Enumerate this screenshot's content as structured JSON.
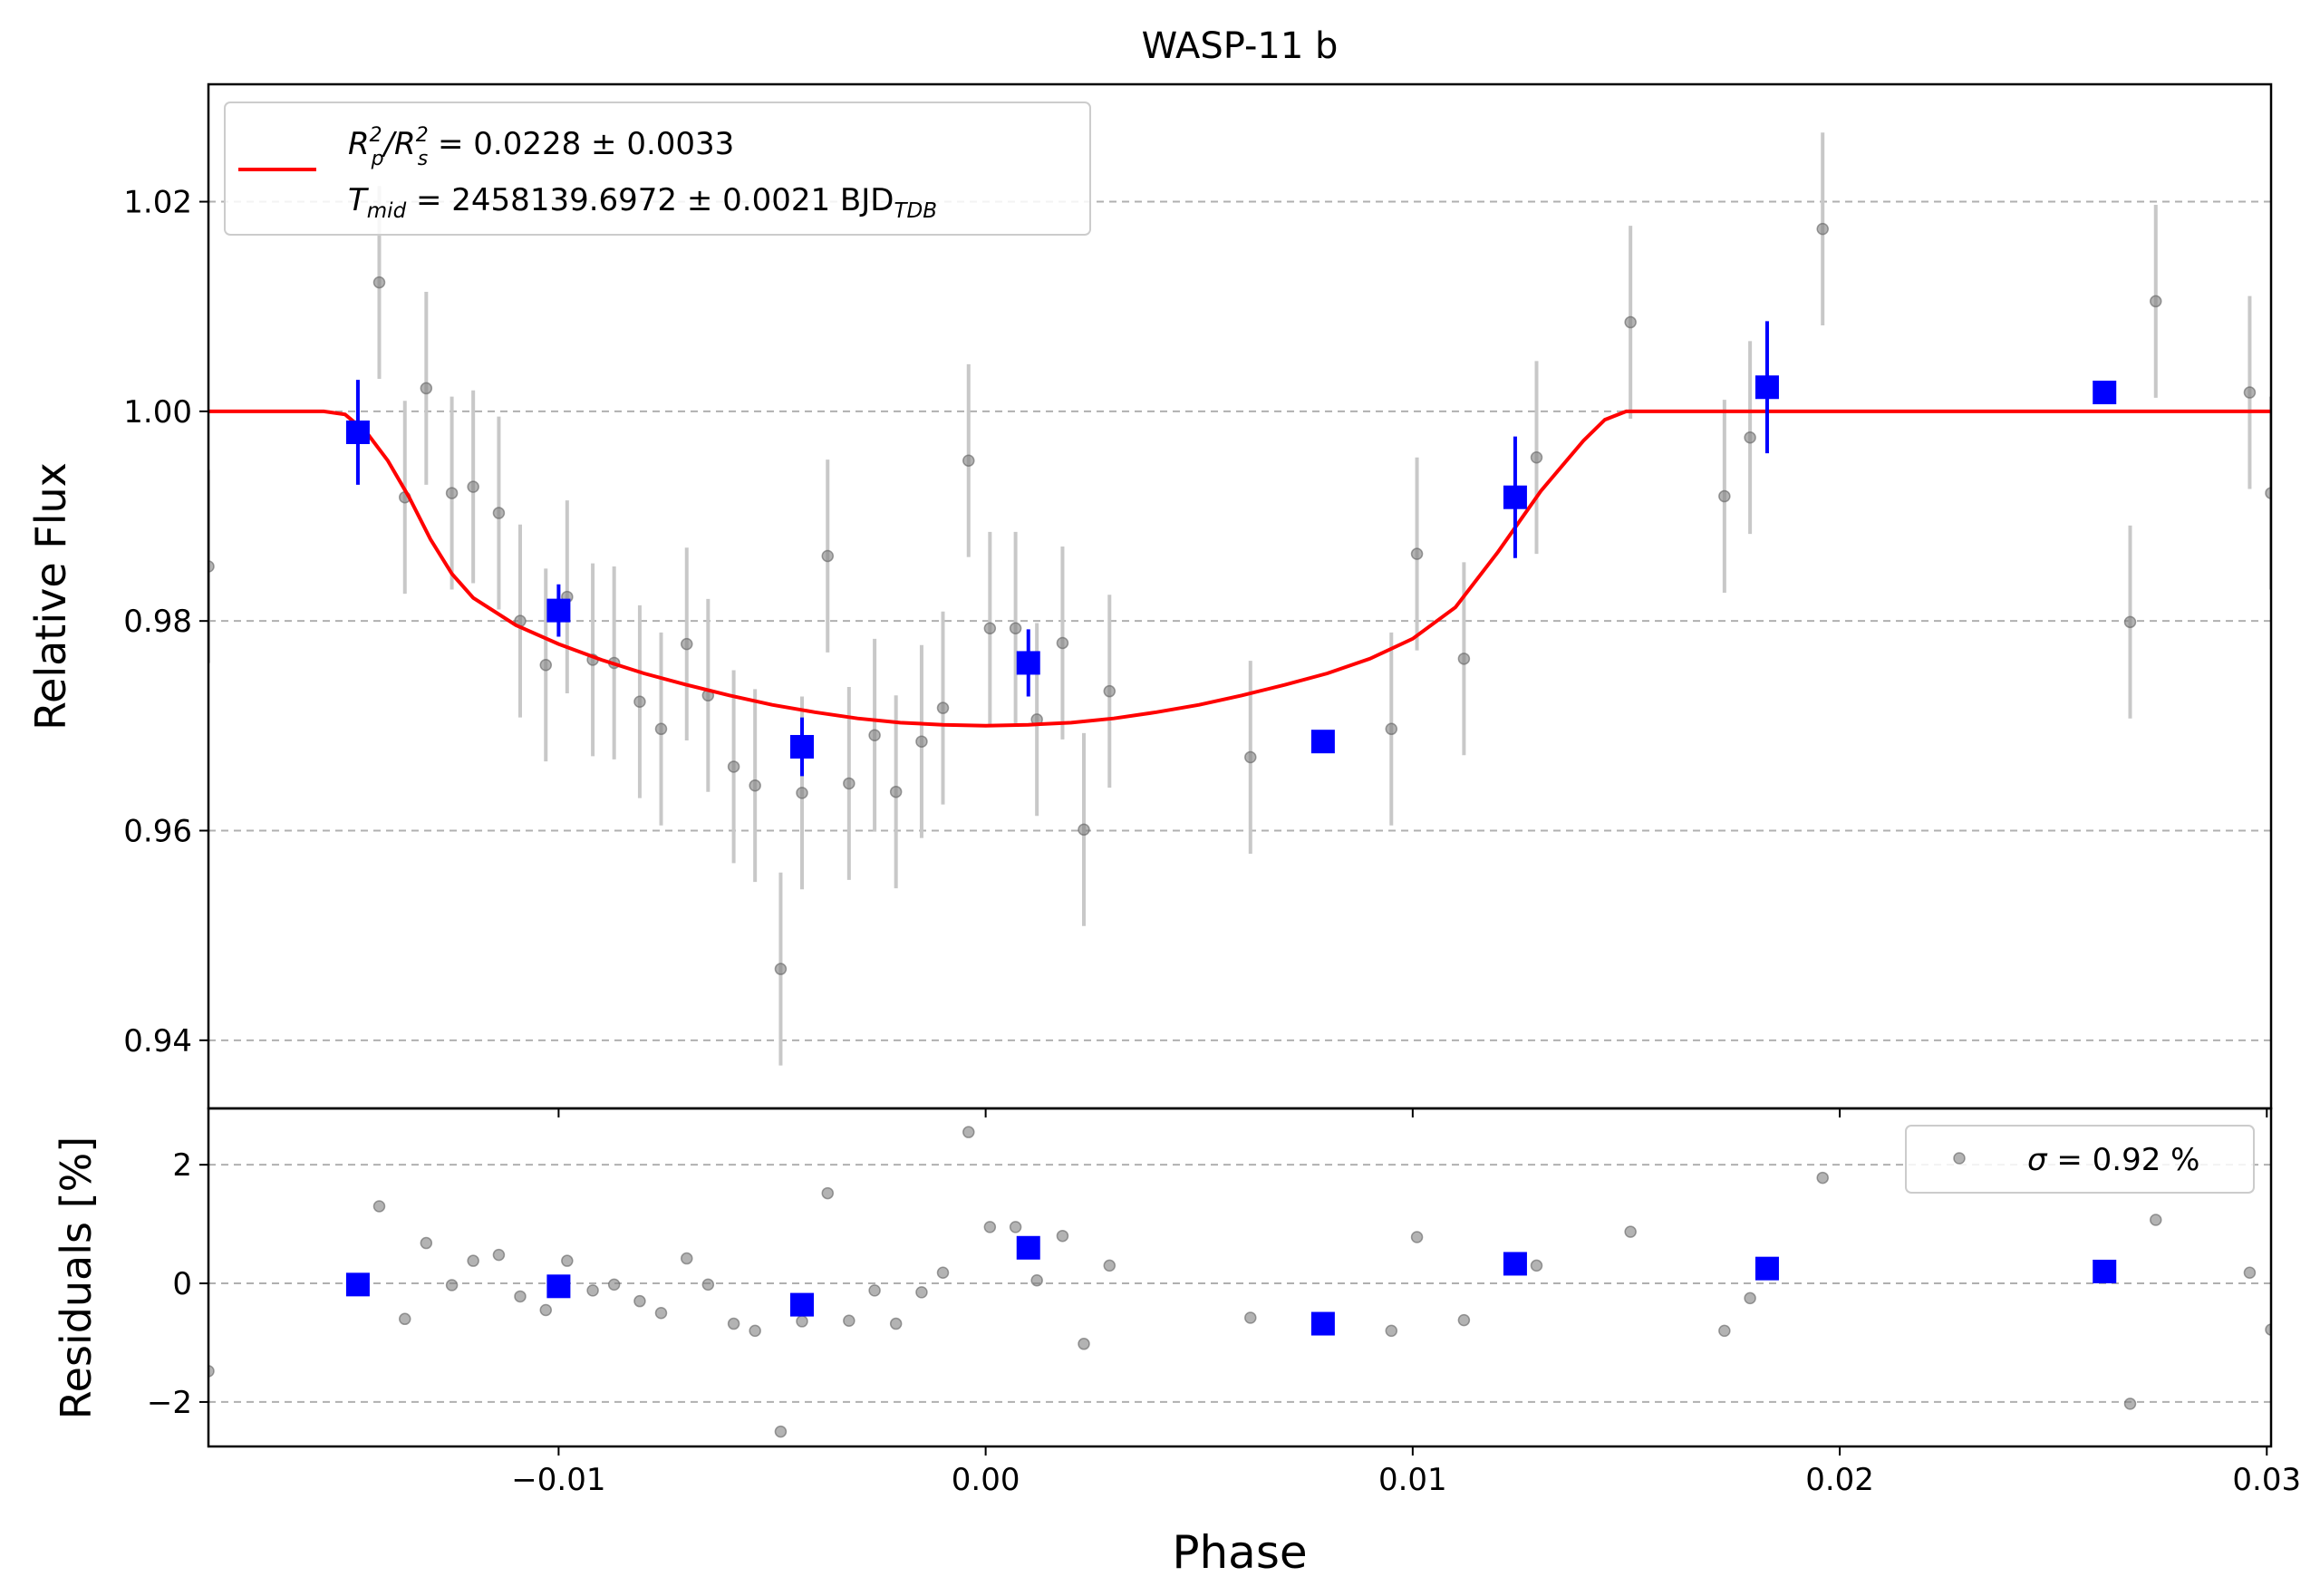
{
  "chart_data": [
    {
      "type": "scatter",
      "title": "WASP-11 b",
      "xlabel": "",
      "ylabel": "Relative Flux",
      "xlim": [
        -0.0182,
        0.0301
      ],
      "ylim": [
        0.9335,
        1.0312
      ],
      "x_ticks": [
        -0.01,
        0.0,
        0.01,
        0.02,
        0.03
      ],
      "y_ticks": [
        0.94,
        0.96,
        0.98,
        1.0,
        1.02
      ],
      "y_tick_labels": [
        "0.94",
        "0.96",
        "0.98",
        "1.00",
        "1.02"
      ],
      "grid": "horizontal dashed",
      "legend": {
        "placement": "top-left",
        "line1": {
          "main": "R",
          "sub1": "p",
          "sup1": "2",
          "slash": "/R",
          "sub2": "s",
          "sup2": "2",
          "rest": " = 0.0228 ± 0.0033"
        },
        "line2": {
          "main": "T",
          "sub": "mid",
          "rest": " = 2458139.6972 ± 0.0021 BJD",
          "sub2": "TDB"
        }
      },
      "colors": {
        "model": "#ff0000",
        "binned": "#0000ff",
        "raw": "#808080",
        "raw_err": "#c8c8c8"
      },
      "model": {
        "name": "",
        "points": [
          [
            -0.0182,
            1.0
          ],
          [
            -0.0155,
            1.0
          ],
          [
            -0.015,
            0.9997
          ],
          [
            -0.0145,
            0.998
          ],
          [
            -0.014,
            0.9953
          ],
          [
            -0.0135,
            0.9918
          ],
          [
            -0.013,
            0.9878
          ],
          [
            -0.0125,
            0.9845
          ],
          [
            -0.012,
            0.9822
          ],
          [
            -0.011,
            0.9796
          ],
          [
            -0.01,
            0.9778
          ],
          [
            -0.009,
            0.9763
          ],
          [
            -0.008,
            0.975
          ],
          [
            -0.007,
            0.9739
          ],
          [
            -0.006,
            0.9729
          ],
          [
            -0.005,
            0.972
          ],
          [
            -0.004,
            0.9713
          ],
          [
            -0.003,
            0.9707
          ],
          [
            -0.002,
            0.9703
          ],
          [
            -0.001,
            0.9701
          ],
          [
            0.0,
            0.97
          ],
          [
            0.001,
            0.9701
          ],
          [
            0.002,
            0.9703
          ],
          [
            0.003,
            0.9707
          ],
          [
            0.004,
            0.9713
          ],
          [
            0.005,
            0.972
          ],
          [
            0.006,
            0.9729
          ],
          [
            0.007,
            0.9739
          ],
          [
            0.008,
            0.975
          ],
          [
            0.009,
            0.9764
          ],
          [
            0.01,
            0.9783
          ],
          [
            0.011,
            0.9813
          ],
          [
            0.012,
            0.9866
          ],
          [
            0.013,
            0.9924
          ],
          [
            0.014,
            0.9972
          ],
          [
            0.0145,
            0.9992
          ],
          [
            0.015,
            1.0
          ],
          [
            0.0301,
            1.0
          ]
        ]
      },
      "binned": {
        "x": [
          -0.0147,
          -0.01,
          -0.0043,
          0.001,
          0.0079,
          0.0124,
          0.0183,
          0.0262
        ],
        "y": [
          0.998,
          0.981,
          0.968,
          0.976,
          0.9685,
          0.9918,
          1.0023,
          1.0018
        ],
        "err": [
          0.005,
          0.0025,
          0.0028,
          0.0032,
          0.0,
          0.0058,
          0.0063,
          0.0
        ]
      },
      "raw": {
        "x": [
          -0.0182,
          -0.0142,
          -0.0136,
          -0.0131,
          -0.0125,
          -0.012,
          -0.0114,
          -0.0109,
          -0.0103,
          -0.0098,
          -0.0092,
          -0.0087,
          -0.0081,
          -0.0076,
          -0.007,
          -0.0065,
          -0.0059,
          -0.0054,
          -0.0048,
          -0.0043,
          -0.0037,
          -0.0032,
          -0.0026,
          -0.0021,
          -0.0015,
          -0.001,
          -0.0004,
          0.0001,
          0.0007,
          0.0012,
          0.0018,
          0.0023,
          0.0029,
          0.0062,
          0.0095,
          0.0101,
          0.0112,
          0.0129,
          0.0151,
          0.0173,
          0.0179,
          0.0196,
          0.0268,
          0.0274,
          0.0296,
          0.0301
        ],
        "y": [
          0.9852,
          1.0123,
          0.9918,
          1.0022,
          0.9922,
          0.9928,
          0.9903,
          0.98,
          0.9758,
          0.9823,
          0.9763,
          0.976,
          0.9723,
          0.9697,
          0.9778,
          0.9729,
          0.9661,
          0.9643,
          0.9468,
          0.9636,
          0.9862,
          0.9645,
          0.9691,
          0.9637,
          0.9685,
          0.9717,
          0.9953,
          0.9793,
          0.9793,
          0.9706,
          0.9779,
          0.9601,
          0.9733,
          0.967,
          0.9697,
          0.9864,
          0.9764,
          0.9956,
          1.0085,
          0.9919,
          0.9975,
          1.0174,
          0.9799,
          1.0105,
          1.0018,
          0.9922
        ],
        "err": 0.0092
      }
    },
    {
      "type": "scatter",
      "title": "",
      "xlabel": "Phase",
      "ylabel": "Residuals [%]",
      "xlim": [
        -0.0182,
        0.0301
      ],
      "ylim": [
        -2.75,
        2.95
      ],
      "x_ticks": [
        -0.01,
        0.0,
        0.01,
        0.02,
        0.03
      ],
      "x_tick_labels": [
        "−0.01",
        "0.00",
        "0.01",
        "0.02",
        "0.03"
      ],
      "y_ticks": [
        -2,
        0,
        2
      ],
      "y_tick_labels": [
        "−2",
        "0",
        "2"
      ],
      "grid": "horizontal dashed",
      "legend": {
        "placement": "top-right",
        "symbol": "σ",
        "rest": " = 0.92 %"
      },
      "binned": {
        "x": [
          -0.0147,
          -0.01,
          -0.0043,
          0.001,
          0.0079,
          0.0124,
          0.0183,
          0.0262
        ],
        "y": [
          -0.02,
          -0.05,
          -0.36,
          0.6,
          -0.68,
          0.33,
          0.25,
          0.2
        ]
      },
      "raw": {
        "x": [
          -0.0182,
          -0.0142,
          -0.0136,
          -0.0131,
          -0.0125,
          -0.012,
          -0.0114,
          -0.0109,
          -0.0103,
          -0.0098,
          -0.0092,
          -0.0087,
          -0.0081,
          -0.0076,
          -0.007,
          -0.0065,
          -0.0059,
          -0.0054,
          -0.0048,
          -0.0043,
          -0.0037,
          -0.0032,
          -0.0026,
          -0.0021,
          -0.0015,
          -0.001,
          -0.0004,
          0.0001,
          0.0007,
          0.0012,
          0.0018,
          0.0023,
          0.0029,
          0.0062,
          0.0095,
          0.0101,
          0.0112,
          0.0129,
          0.0151,
          0.0173,
          0.0179,
          0.0196,
          0.0268,
          0.0274,
          0.0296,
          0.0301
        ],
        "y": [
          -1.48,
          1.3,
          -0.6,
          0.68,
          -0.03,
          0.38,
          0.48,
          -0.22,
          -0.45,
          0.38,
          -0.12,
          -0.02,
          -0.3,
          -0.5,
          0.42,
          -0.02,
          -0.68,
          -0.8,
          -2.5,
          -0.64,
          1.52,
          -0.63,
          -0.12,
          -0.68,
          -0.15,
          0.18,
          2.55,
          0.95,
          0.95,
          0.05,
          0.8,
          -1.02,
          0.3,
          -0.58,
          -0.8,
          0.78,
          -0.62,
          0.3,
          0.87,
          -0.8,
          -0.25,
          1.78,
          -2.03,
          1.07,
          0.18,
          -0.78
        ]
      }
    }
  ]
}
